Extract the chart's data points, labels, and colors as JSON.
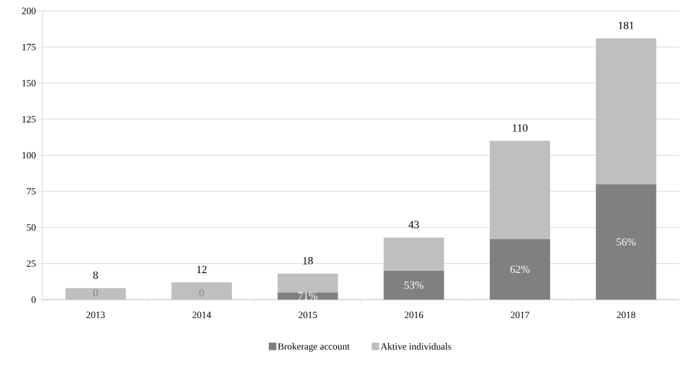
{
  "chart_data": {
    "type": "bar",
    "stacked": true,
    "categories": [
      "2013",
      "2014",
      "2015",
      "2016",
      "2017",
      "2018"
    ],
    "series": [
      {
        "name": "Brokerage account",
        "color": "#808080",
        "values": [
          0,
          0,
          5,
          20,
          42,
          80
        ]
      },
      {
        "name": "Aktive individuals",
        "color": "#bfbfbf",
        "values": [
          8,
          12,
          13,
          23,
          68,
          101
        ]
      }
    ],
    "totals": [
      "8",
      "12",
      "18",
      "43",
      "110",
      "181"
    ],
    "annotations": [
      "0",
      "0",
      "71%",
      "53%",
      "62%",
      "56%"
    ],
    "ylim": [
      0,
      200
    ],
    "yticks": [
      0,
      25,
      50,
      75,
      100,
      125,
      150,
      175,
      200
    ],
    "grid": "y",
    "legend": "bottom"
  }
}
